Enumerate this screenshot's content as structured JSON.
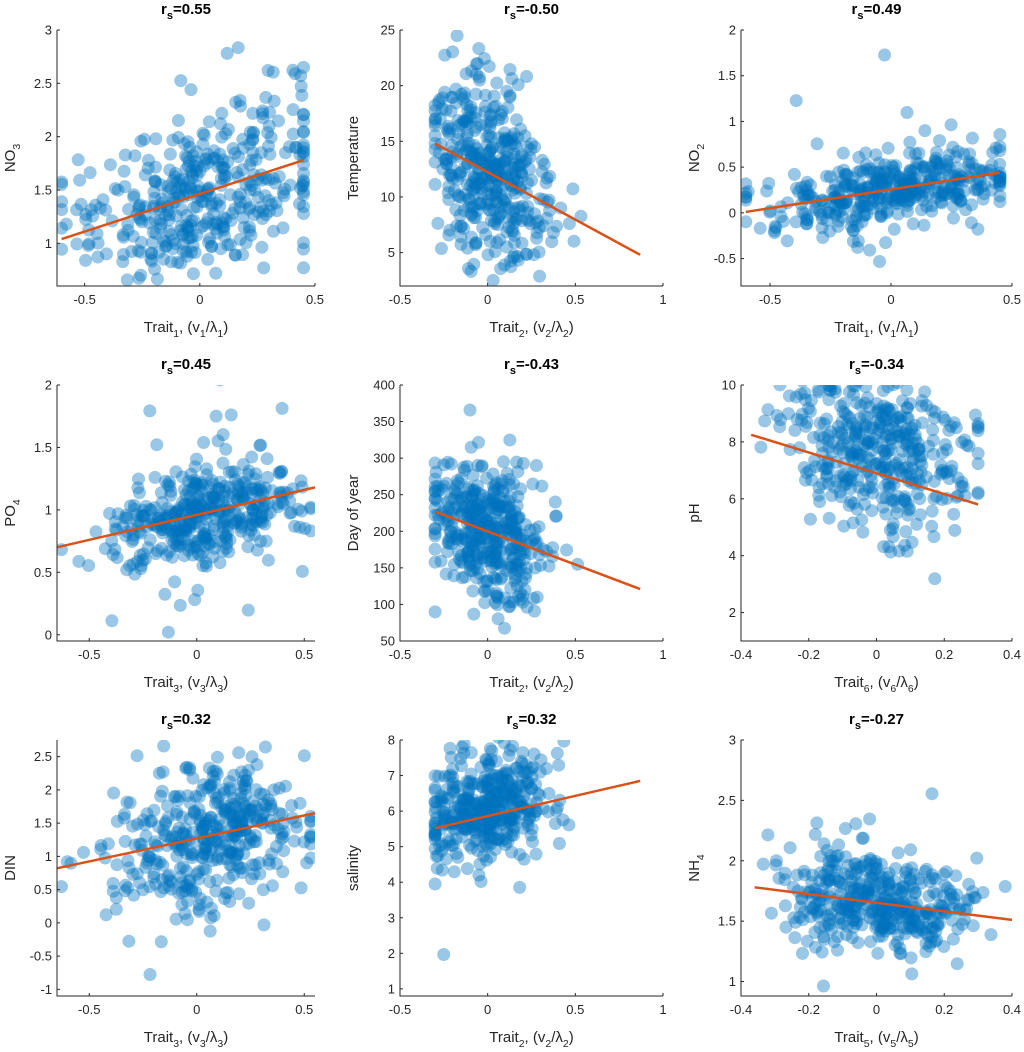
{
  "colors": {
    "points": "#0072BD",
    "fit": "#D95319"
  },
  "chart_data": [
    {
      "type": "scatter",
      "title": {
        "r": "r",
        "sub": "s",
        "value": "=0.55"
      },
      "ylabel": {
        "main": "NO",
        "sub": "3"
      },
      "xlabel": {
        "trait": "Trait",
        "tsub": "1",
        "mid": ", (v",
        "vsub": "1",
        "slash": "/λ",
        "lsub": "1",
        "end": ")"
      },
      "xlim": [
        -0.62,
        0.5
      ],
      "ylim": [
        0.6,
        3
      ],
      "xticks": [
        -0.5,
        0,
        0.5
      ],
      "xtick_labels": [
        "-0.5",
        "0",
        "0.5"
      ],
      "yticks": [
        1,
        1.5,
        2,
        2.5,
        3
      ],
      "ytick_labels": [
        "1",
        "1.5",
        "2",
        "2.5",
        "3"
      ],
      "fit_line": {
        "x": [
          -0.6,
          0.45
        ],
        "y": [
          1.04,
          1.78
        ]
      },
      "points": {
        "n": 420,
        "seed": 11,
        "x_center": 0.0,
        "x_spread": 0.26,
        "slope": 0.7,
        "intercept": 1.45,
        "noise": 0.38,
        "x_range": [
          -0.6,
          0.45
        ]
      }
    },
    {
      "type": "scatter",
      "title": {
        "r": "r",
        "sub": "s",
        "value": "=-0.50"
      },
      "ylabel": {
        "main": "Temperature",
        "sub": ""
      },
      "xlabel": {
        "trait": "Trait",
        "tsub": "2",
        "mid": ", (v",
        "vsub": "2",
        "slash": "/λ",
        "lsub": "2",
        "end": ")"
      },
      "xlim": [
        -0.5,
        1.0
      ],
      "ylim": [
        2,
        25
      ],
      "xticks": [
        -0.5,
        0,
        0.5,
        1
      ],
      "xtick_labels": [
        "-0.5",
        "0",
        "0.5",
        "1"
      ],
      "yticks": [
        5,
        10,
        15,
        20,
        25
      ],
      "ytick_labels": [
        "5",
        "10",
        "15",
        "20",
        "25"
      ],
      "fit_line": {
        "x": [
          -0.3,
          0.87
        ],
        "y": [
          14.8,
          4.8
        ]
      },
      "points": {
        "n": 420,
        "seed": 23,
        "x_center": 0.0,
        "x_spread": 0.17,
        "slope": -8.5,
        "intercept": 12.2,
        "noise": 3.8,
        "x_range": [
          -0.3,
          0.87
        ]
      }
    },
    {
      "type": "scatter",
      "title": {
        "r": "r",
        "sub": "s",
        "value": "=0.49"
      },
      "ylabel": {
        "main": "NO",
        "sub": "2"
      },
      "xlabel": {
        "trait": "Trait",
        "tsub": "1",
        "mid": ", (v",
        "vsub": "1",
        "slash": "/λ",
        "lsub": "1",
        "end": ")"
      },
      "xlim": [
        -0.62,
        0.5
      ],
      "ylim": [
        -0.8,
        2
      ],
      "xticks": [
        -0.5,
        0,
        0.5
      ],
      "xtick_labels": [
        "-0.5",
        "0",
        "0.5"
      ],
      "yticks": [
        -0.5,
        0,
        0.5,
        1,
        1.5,
        2
      ],
      "ytick_labels": [
        "-0.5",
        "0",
        "0.5",
        "1",
        "1.5",
        "2"
      ],
      "fit_line": {
        "x": [
          -0.6,
          0.45
        ],
        "y": [
          0.01,
          0.44
        ]
      },
      "points": {
        "n": 420,
        "seed": 37,
        "x_center": 0.0,
        "x_spread": 0.26,
        "slope": 0.41,
        "intercept": 0.26,
        "noise": 0.2,
        "x_range": [
          -0.6,
          0.45
        ]
      }
    },
    {
      "type": "scatter",
      "title": {
        "r": "r",
        "sub": "s",
        "value": "=0.45"
      },
      "ylabel": {
        "main": "PO",
        "sub": "4"
      },
      "xlabel": {
        "trait": "Trait",
        "tsub": "3",
        "mid": ", (v",
        "vsub": "3",
        "slash": "/λ",
        "lsub": "3",
        "end": ")"
      },
      "xlim": [
        -0.65,
        0.55
      ],
      "ylim": [
        -0.05,
        2
      ],
      "xticks": [
        -0.5,
        0,
        0.5
      ],
      "xtick_labels": [
        "-0.5",
        "0",
        "0.5"
      ],
      "yticks": [
        0,
        0.5,
        1,
        1.5,
        2
      ],
      "ytick_labels": [
        "0",
        "0.5",
        "1",
        "1.5",
        "2"
      ],
      "fit_line": {
        "x": [
          -0.65,
          0.55
        ],
        "y": [
          0.7,
          1.18
        ]
      },
      "points": {
        "n": 420,
        "seed": 41,
        "x_center": 0.05,
        "x_spread": 0.22,
        "slope": 0.4,
        "intercept": 0.96,
        "noise": 0.2,
        "x_range": [
          -0.63,
          0.53
        ]
      }
    },
    {
      "type": "scatter",
      "title": {
        "r": "r",
        "sub": "s",
        "value": "=-0.43"
      },
      "ylabel": {
        "main": "Day of year",
        "sub": ""
      },
      "xlabel": {
        "trait": "Trait",
        "tsub": "2",
        "mid": ", (v",
        "vsub": "2",
        "slash": "/λ",
        "lsub": "2",
        "end": ")"
      },
      "xlim": [
        -0.5,
        1.0
      ],
      "ylim": [
        50,
        400
      ],
      "xticks": [
        -0.5,
        0,
        0.5,
        1
      ],
      "xtick_labels": [
        "-0.5",
        "0",
        "0.5",
        "1"
      ],
      "yticks": [
        50,
        100,
        150,
        200,
        250,
        300,
        350,
        400
      ],
      "ytick_labels": [
        "50",
        "100",
        "150",
        "200",
        "250",
        "300",
        "350",
        "400"
      ],
      "fit_line": {
        "x": [
          -0.3,
          0.87
        ],
        "y": [
          227,
          121
        ]
      },
      "points": {
        "n": 420,
        "seed": 53,
        "x_center": 0.0,
        "x_spread": 0.17,
        "slope": -90,
        "intercept": 200,
        "noise": 42,
        "x_range": [
          -0.3,
          0.87
        ]
      }
    },
    {
      "type": "scatter",
      "title": {
        "r": "r",
        "sub": "s",
        "value": "=-0.34"
      },
      "ylabel": {
        "main": "pH",
        "sub": ""
      },
      "xlabel": {
        "trait": "Trait",
        "tsub": "6",
        "mid": ", (v",
        "vsub": "6",
        "slash": "/λ",
        "lsub": "6",
        "end": ")"
      },
      "xlim": [
        -0.4,
        0.4
      ],
      "ylim": [
        1,
        10
      ],
      "xticks": [
        -0.4,
        -0.2,
        0,
        0.2,
        0.4
      ],
      "xtick_labels": [
        "-0.4",
        "-0.2",
        "0",
        "0.2",
        "0.4"
      ],
      "yticks": [
        2,
        4,
        6,
        8,
        10
      ],
      "ytick_labels": [
        "2",
        "4",
        "6",
        "8",
        "10"
      ],
      "fit_line": {
        "x": [
          -0.37,
          0.3
        ],
        "y": [
          8.25,
          5.8
        ]
      },
      "points": {
        "n": 420,
        "seed": 67,
        "x_center": 0.0,
        "x_spread": 0.13,
        "slope": -1.5,
        "intercept": 7.7,
        "noise": 1.3,
        "x_range": [
          -0.37,
          0.3
        ]
      }
    },
    {
      "type": "scatter",
      "title": {
        "r": "r",
        "sub": "s",
        "value": "=0.32"
      },
      "ylabel": {
        "main": "DIN",
        "sub": ""
      },
      "xlabel": {
        "trait": "Trait",
        "tsub": "3",
        "mid": ", (v",
        "vsub": "3",
        "slash": "/λ",
        "lsub": "3",
        "end": ")"
      },
      "xlim": [
        -0.65,
        0.55
      ],
      "ylim": [
        -1.1,
        2.75
      ],
      "xticks": [
        -0.5,
        0,
        0.5
      ],
      "xtick_labels": [
        "-0.5",
        "0",
        "0.5"
      ],
      "yticks": [
        -1,
        -0.5,
        0,
        0.5,
        1,
        1.5,
        2,
        2.5
      ],
      "ytick_labels": [
        "-1",
        "-0.5",
        "0",
        "0.5",
        "1",
        "1.5",
        "2",
        "2.5"
      ],
      "fit_line": {
        "x": [
          -0.65,
          0.55
        ],
        "y": [
          0.82,
          1.65
        ]
      },
      "points": {
        "n": 420,
        "seed": 79,
        "x_center": 0.05,
        "x_spread": 0.22,
        "slope": 0.7,
        "intercept": 1.28,
        "noise": 0.55,
        "x_range": [
          -0.63,
          0.53
        ]
      }
    },
    {
      "type": "scatter",
      "title": {
        "r": "r",
        "sub": "s",
        "value": "=0.32"
      },
      "ylabel": {
        "main": "salinity",
        "sub": ""
      },
      "xlabel": {
        "trait": "Trait",
        "tsub": "2",
        "mid": ", (v",
        "vsub": "2",
        "slash": "/λ",
        "lsub": "2",
        "end": ")"
      },
      "xlim": [
        -0.5,
        1.0
      ],
      "ylim": [
        0.8,
        8
      ],
      "xticks": [
        -0.5,
        0,
        0.5,
        1
      ],
      "xtick_labels": [
        "-0.5",
        "0",
        "0.5",
        "1"
      ],
      "yticks": [
        1,
        2,
        3,
        4,
        5,
        6,
        7,
        8
      ],
      "ytick_labels": [
        "1",
        "2",
        "3",
        "4",
        "5",
        "6",
        "7",
        "8"
      ],
      "fit_line": {
        "x": [
          -0.3,
          0.87
        ],
        "y": [
          5.52,
          6.85
        ]
      },
      "points": {
        "n": 420,
        "seed": 83,
        "x_center": 0.0,
        "x_spread": 0.17,
        "slope": 1.1,
        "intercept": 6.2,
        "noise": 0.75,
        "x_range": [
          -0.3,
          0.87
        ]
      }
    },
    {
      "type": "scatter",
      "title": {
        "r": "r",
        "sub": "s",
        "value": "=-0.27"
      },
      "ylabel": {
        "main": "NH",
        "sub": "4"
      },
      "xlabel": {
        "trait": "Trait",
        "tsub": "5",
        "mid": ", (v",
        "vsub": "5",
        "slash": "/λ",
        "lsub": "5",
        "end": ")"
      },
      "xlim": [
        -0.4,
        0.4
      ],
      "ylim": [
        0.88,
        3
      ],
      "xticks": [
        -0.4,
        -0.2,
        0,
        0.2,
        0.4
      ],
      "xtick_labels": [
        "-0.4",
        "-0.2",
        "0",
        "0.2",
        "0.4"
      ],
      "yticks": [
        1,
        1.5,
        2,
        2.5,
        3
      ],
      "ytick_labels": [
        "1",
        "1.5",
        "2",
        "2.5",
        "3"
      ],
      "fit_line": {
        "x": [
          -0.36,
          0.4
        ],
        "y": [
          1.78,
          1.51
        ]
      },
      "points": {
        "n": 420,
        "seed": 97,
        "x_center": 0.0,
        "x_spread": 0.14,
        "slope": -0.35,
        "intercept": 1.66,
        "noise": 0.2,
        "x_range": [
          -0.36,
          0.38
        ]
      }
    }
  ]
}
